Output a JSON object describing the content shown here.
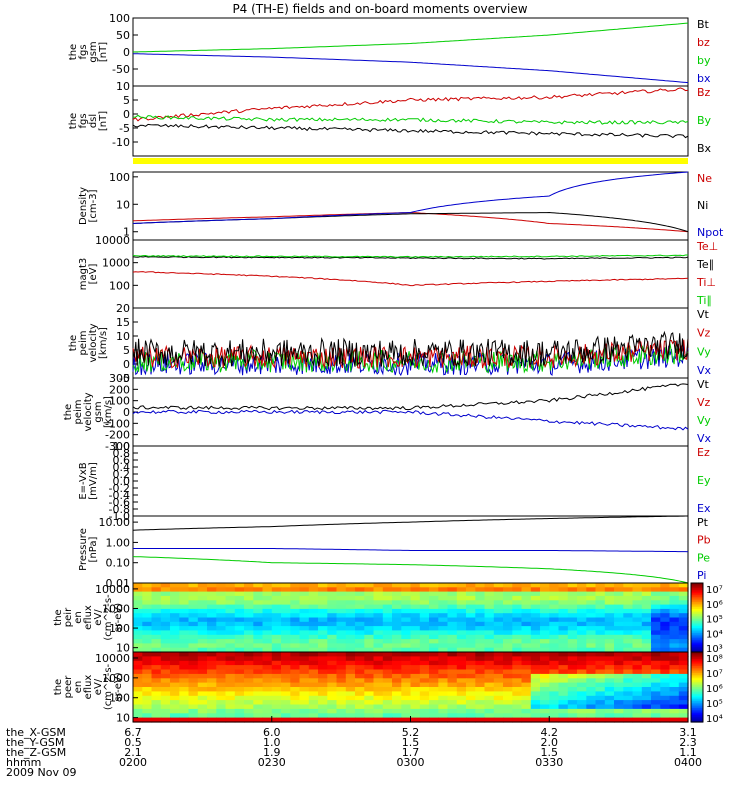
{
  "title": "P4 (TH-E) fields and on-board moments overview",
  "panels": [
    {
      "id": "fgs-gsm",
      "label_lines": [
        "the",
        "fgs",
        "gsm",
        "[nT]"
      ],
      "ylim": [
        -100,
        100
      ],
      "yticks": [
        100,
        50,
        0,
        -50
      ],
      "log": false,
      "legend": [
        {
          "text": "Bt",
          "color": "#000000"
        },
        {
          "text": "bz",
          "color": "#cc0000"
        },
        {
          "text": "by",
          "color": "#00cc00"
        },
        {
          "text": "bx",
          "color": "#0000cc"
        }
      ]
    },
    {
      "id": "fgs-dsl",
      "label_lines": [
        "the",
        "fgs",
        "dsl",
        "[nT]"
      ],
      "ylim": [
        -15,
        10
      ],
      "yticks": [
        10,
        5,
        0,
        -5,
        -10
      ],
      "log": false,
      "legend": [
        {
          "text": "Bz",
          "color": "#cc0000"
        },
        {
          "text": "By",
          "color": "#00cc00"
        },
        {
          "text": "Bx",
          "color": "#000000"
        }
      ]
    },
    {
      "id": "density",
      "label_lines": [
        "Density",
        "[cm-3]"
      ],
      "ylim": [
        0.5,
        150
      ],
      "yticks": [
        100,
        10,
        1
      ],
      "log": true,
      "legend": [
        {
          "text": "Ne",
          "color": "#cc0000"
        },
        {
          "text": "Ni",
          "color": "#000000"
        },
        {
          "text": "Npot",
          "color": "#0000cc"
        }
      ]
    },
    {
      "id": "temperature",
      "label_lines": [
        "magt3",
        "[eV]"
      ],
      "ylim": [
        10,
        10000
      ],
      "yticks": [
        10000,
        1000,
        100
      ],
      "log": true,
      "legend": [
        {
          "text": "Te⊥",
          "color": "#cc0000"
        },
        {
          "text": "Te∥",
          "color": "#000000"
        },
        {
          "text": "Ti⊥",
          "color": "#cc0000"
        },
        {
          "text": "Ti∥",
          "color": "#00cc00"
        }
      ]
    },
    {
      "id": "peim-velocity",
      "label_lines": [
        "the",
        "peim",
        "velocity",
        "[km/s]"
      ],
      "ylim": [
        -5,
        20
      ],
      "yticks": [
        20,
        15,
        10,
        5,
        0,
        -5
      ],
      "log": false,
      "legend": [
        {
          "text": "Vt",
          "color": "#000000"
        },
        {
          "text": "Vz",
          "color": "#cc0000"
        },
        {
          "text": "Vy",
          "color": "#00cc00"
        },
        {
          "text": "Vx",
          "color": "#0000cc"
        }
      ]
    },
    {
      "id": "peim-velocity-gsm",
      "label_lines": [
        "the",
        "peim",
        "velocity",
        "gsm",
        "[km/s]"
      ],
      "ylim": [
        -300,
        300
      ],
      "yticks": [
        300,
        200,
        100,
        0,
        -100,
        -200,
        -300
      ],
      "log": false,
      "legend": [
        {
          "text": "Vt",
          "color": "#000000"
        },
        {
          "text": "Vz",
          "color": "#cc0000"
        },
        {
          "text": "Vy",
          "color": "#00cc00"
        },
        {
          "text": "Vx",
          "color": "#0000cc"
        }
      ]
    },
    {
      "id": "efield",
      "label_lines": [
        "E=-VxB",
        "[mV/m]"
      ],
      "ylim": [
        -1,
        1
      ],
      "yticks": [
        1.0,
        0.8,
        0.6,
        0.4,
        0.2,
        0.0,
        -0.2,
        -0.4,
        -0.6,
        -0.8,
        -1.0
      ],
      "ytick_labels": [
        "1.0",
        "0.8",
        "0.6",
        "0.4",
        "0.2",
        "0.0",
        "-0.2",
        "-0.4",
        "-0.6",
        "-0.8",
        "-1.0"
      ],
      "log": false,
      "legend": [
        {
          "text": "Ez",
          "color": "#cc0000"
        },
        {
          "text": "Ey",
          "color": "#00cc00"
        },
        {
          "text": "Ex",
          "color": "#0000cc"
        }
      ]
    },
    {
      "id": "pressure",
      "label_lines": [
        "Pressure",
        "[nPa]"
      ],
      "ylim": [
        0.01,
        20
      ],
      "yticks": [
        10,
        1,
        0.1,
        0.01
      ],
      "ytick_labels": [
        "10.00",
        "1.00",
        "0.10",
        "0.01"
      ],
      "log": true,
      "legend": [
        {
          "text": "Pt",
          "color": "#000000"
        },
        {
          "text": "Pb",
          "color": "#cc0000"
        },
        {
          "text": "Pe",
          "color": "#00cc00"
        },
        {
          "text": "Pi",
          "color": "#0000cc"
        }
      ]
    },
    {
      "id": "peir-spectrogram",
      "label_lines": [
        "the",
        "peir",
        "en",
        "eflux",
        "eV/",
        "(cm^2-s-",
        "sr-eV)"
      ],
      "ylim": [
        6,
        20000
      ],
      "yticks": [
        10000,
        1000,
        100,
        10
      ],
      "log": true,
      "colorbar": {
        "ticks": [
          "10⁷",
          "10⁶",
          "10⁵",
          "10⁴",
          "10³"
        ]
      }
    },
    {
      "id": "peer-spectrogram",
      "label_lines": [
        "the",
        "peer",
        "en",
        "eflux",
        "eV/",
        "(cm^2-s-",
        "sr-eV)"
      ],
      "ylim": [
        6,
        20000
      ],
      "yticks": [
        10000,
        1000,
        100,
        10
      ],
      "log": true,
      "colorbar": {
        "ticks": [
          "10⁸",
          "10⁷",
          "10⁶",
          "10⁵",
          "10⁴"
        ]
      }
    }
  ],
  "xaxis": {
    "rows": [
      {
        "label": "the_X-GSM",
        "values": [
          "6.7",
          "6.0",
          "5.2",
          "4.2",
          "3.1"
        ]
      },
      {
        "label": "the_Y-GSM",
        "values": [
          "0.5",
          "1.0",
          "1.5",
          "2.0",
          "2.3"
        ]
      },
      {
        "label": "the_Z-GSM",
        "values": [
          "2.1",
          "1.9",
          "1.7",
          "1.5",
          "1.1"
        ]
      },
      {
        "label": "hhmm",
        "values": [
          "0200",
          "0230",
          "0300",
          "0330",
          "0400"
        ]
      }
    ],
    "date": "2009 Nov 09"
  },
  "chart_data": [
    {
      "type": "line",
      "panel": "fgs-gsm",
      "x": [
        "0200",
        "0230",
        "0300",
        "0330",
        "0400"
      ],
      "series": [
        {
          "name": "by",
          "values": [
            0,
            10,
            25,
            50,
            85
          ]
        },
        {
          "name": "bx",
          "values": [
            -5,
            -15,
            -30,
            -55,
            -90
          ]
        }
      ]
    },
    {
      "type": "line",
      "panel": "fgs-dsl",
      "x": [
        "0200",
        "0230",
        "0300",
        "0330",
        "0400"
      ],
      "series": [
        {
          "name": "Bz",
          "values": [
            -2,
            2,
            5,
            6,
            9
          ]
        },
        {
          "name": "By",
          "values": [
            -1,
            -2,
            -2,
            -3,
            -3
          ]
        },
        {
          "name": "Bx",
          "values": [
            -4,
            -5,
            -6,
            -7,
            -8
          ]
        }
      ]
    },
    {
      "type": "line",
      "panel": "density",
      "x": [
        "0200",
        "0230",
        "0300",
        "0330",
        "0400"
      ],
      "series": [
        {
          "name": "Ne",
          "values": [
            2.5,
            3.5,
            5,
            2,
            1
          ]
        },
        {
          "name": "Ni",
          "values": [
            2,
            3,
            4.5,
            5,
            1
          ]
        },
        {
          "name": "Npot",
          "values": [
            2,
            3,
            5,
            20,
            150
          ]
        }
      ]
    },
    {
      "type": "line",
      "panel": "temperature",
      "x": [
        "0200",
        "0230",
        "0300",
        "0330",
        "0400"
      ],
      "series": [
        {
          "name": "Te⊥",
          "values": [
            400,
            250,
            100,
            150,
            200
          ]
        },
        {
          "name": "Te∥",
          "values": [
            1800,
            1700,
            1600,
            1500,
            1700
          ]
        },
        {
          "name": "Ti∥",
          "values": [
            2000,
            1900,
            1800,
            1900,
            2100
          ]
        }
      ]
    },
    {
      "type": "line",
      "panel": "peim-velocity-gsm",
      "x": [
        "0200",
        "0230",
        "0300",
        "0330",
        "0400"
      ],
      "series": [
        {
          "name": "Vt",
          "values": [
            40,
            35,
            35,
            100,
            250
          ]
        },
        {
          "name": "Vx",
          "values": [
            0,
            0,
            0,
            -80,
            -150
          ]
        }
      ]
    },
    {
      "type": "line",
      "panel": "pressure",
      "x": [
        "0200",
        "0230",
        "0300",
        "0330",
        "0400"
      ],
      "series": [
        {
          "name": "Pt",
          "values": [
            4,
            6,
            10,
            15,
            20
          ]
        },
        {
          "name": "Pe",
          "values": [
            0.2,
            0.1,
            0.08,
            0.05,
            0.01
          ]
        },
        {
          "name": "Pi",
          "values": [
            0.5,
            0.5,
            0.4,
            0.4,
            0.35
          ]
        }
      ]
    }
  ]
}
